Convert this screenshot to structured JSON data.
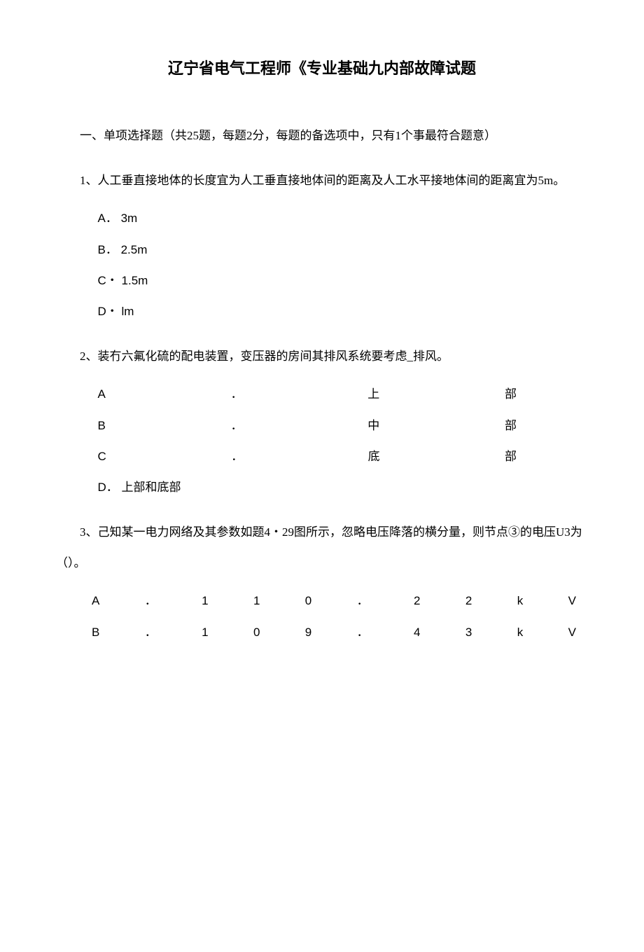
{
  "title": "辽宁省电气工程师《专业基础九内部故障试题",
  "section_header": "一、单项选择题（共25题，每题2分，每题的备选项中，只有1个事最符合题意）",
  "questions": [
    {
      "text": "1、人工垂直接地体的长度宜为人工垂直接地体间的距离及人工水平接地体间的距离宜为5m。",
      "options": [
        {
          "label": "A．",
          "value": "3m",
          "type": "simple"
        },
        {
          "label": "B．",
          "value": "2.5m",
          "type": "simple"
        },
        {
          "label": "C・",
          "value": "1.5m",
          "type": "simple"
        },
        {
          "label": "D・",
          "value": "lm",
          "type": "simple"
        }
      ]
    },
    {
      "text": "2、装冇六氟化硫的配电装置，变压器的房间其排风系统要考虑_排风。",
      "options": [
        {
          "label": "A",
          "dot": "．",
          "value_chars": [
            "上",
            "部"
          ],
          "type": "justified"
        },
        {
          "label": "B",
          "dot": "．",
          "value_chars": [
            "中",
            "部"
          ],
          "type": "justified"
        },
        {
          "label": "C",
          "dot": "．",
          "value_chars": [
            "底",
            "部"
          ],
          "type": "justified"
        },
        {
          "label": "D．",
          "value": "上部和底部",
          "type": "simple"
        }
      ]
    },
    {
      "text": "3、己知某一电力网络及其参数如题4・29图所示，忽略电压降落的横分量，则节点③的电压U3为（）。",
      "options": [
        {
          "chars": [
            "A",
            "．",
            "1",
            "1",
            "0",
            "．",
            "2",
            "2",
            "k",
            "V"
          ],
          "type": "spaced"
        },
        {
          "chars": [
            "B",
            "．",
            "1",
            "0",
            "9",
            "．",
            "4",
            "3",
            "k",
            "V"
          ],
          "type": "spaced"
        }
      ]
    }
  ]
}
